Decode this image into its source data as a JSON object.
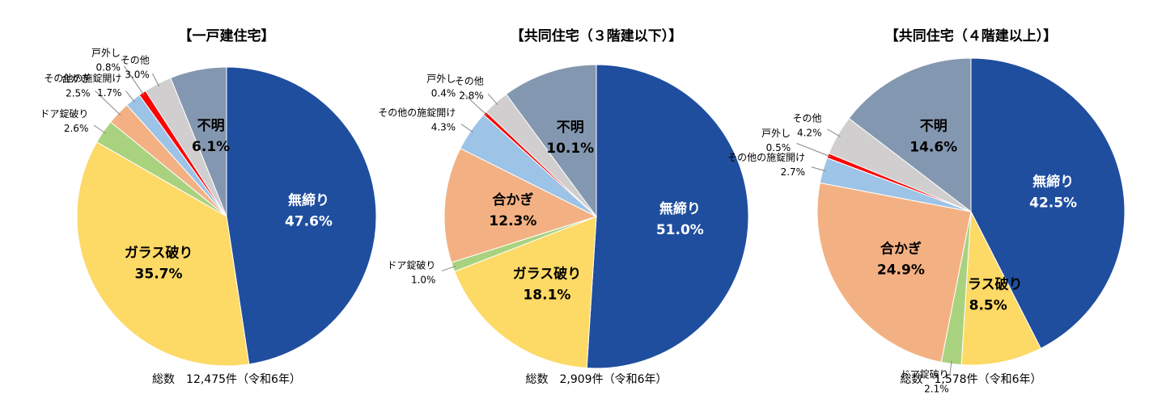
{
  "chart_data": [
    {
      "type": "pie",
      "title": "【一戸建住宅】",
      "note": "総数　12,475件（令和6年）",
      "categories": [
        "無締り",
        "ガラス破り",
        "ドア錠破り",
        "合かぎ",
        "その他の施錠開け",
        "戸外し",
        "その他",
        "不明"
      ],
      "values": [
        47.6,
        35.7,
        2.6,
        2.5,
        1.7,
        0.8,
        3.0,
        6.1
      ],
      "value_labels": [
        "47.6%",
        "35.7%",
        "2.6%",
        "2.5%",
        "1.7%",
        "0.8%",
        "3.0%",
        "6.1%"
      ],
      "colors": [
        "#1f4e9f",
        "#fdd966",
        "#a9d27f",
        "#f3b183",
        "#9dc3e6",
        "#ff0000",
        "#d0cece",
        "#8497b0"
      ]
    },
    {
      "type": "pie",
      "title": "【共同住宅（３階建以下）】",
      "note": "総数　2,909件（令和6年）",
      "categories": [
        "無締り",
        "ガラス破り",
        "ドア錠破り",
        "合かぎ",
        "その他の施錠開け",
        "戸外し",
        "その他",
        "不明"
      ],
      "values": [
        51.0,
        18.1,
        1.0,
        12.3,
        4.3,
        0.4,
        2.8,
        10.1
      ],
      "value_labels": [
        "51.0%",
        "18.1%",
        "1.0%",
        "12.3%",
        "4.3%",
        "0.4%",
        "2.8%",
        "10.1%"
      ],
      "colors": [
        "#1f4e9f",
        "#fdd966",
        "#a9d27f",
        "#f3b183",
        "#9dc3e6",
        "#ff0000",
        "#d0cece",
        "#8497b0"
      ]
    },
    {
      "type": "pie",
      "title": "【共同住宅（４階建以上）】",
      "note": "総数　1,578件（令和6年）",
      "categories": [
        "無締り",
        "ガラス破り",
        "ドア錠破り",
        "合かぎ",
        "その他の施錠開け",
        "戸外し",
        "その他",
        "不明"
      ],
      "values": [
        42.5,
        8.5,
        2.1,
        24.9,
        2.7,
        0.5,
        4.2,
        14.6
      ],
      "value_labels": [
        "42.5%",
        "8.5%",
        "2.1%",
        "24.9%",
        "2.7%",
        "0.5%",
        "4.2%",
        "14.6%"
      ],
      "colors": [
        "#1f4e9f",
        "#fdd966",
        "#a9d27f",
        "#f3b183",
        "#9dc3e6",
        "#ff0000",
        "#d0cece",
        "#8497b0"
      ]
    }
  ]
}
